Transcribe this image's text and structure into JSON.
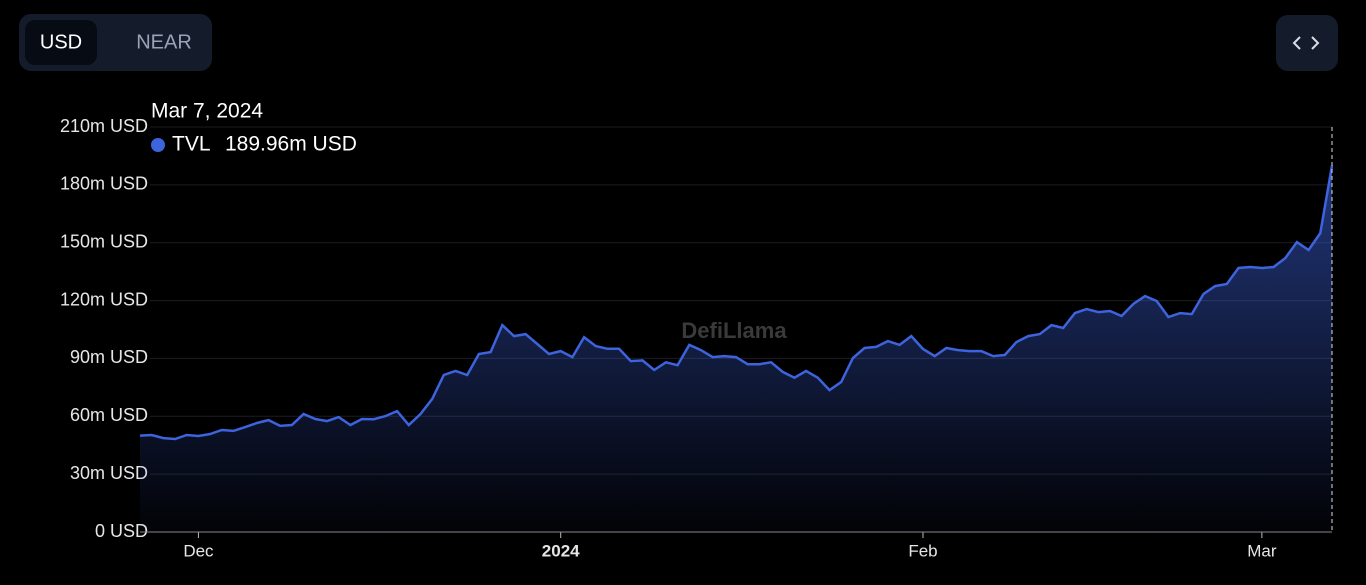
{
  "ui": {
    "toggle": [
      "USD",
      "NEAR"
    ],
    "active": "USD"
  },
  "chart_data": {
    "type": "area",
    "watermark": "DefiLlama",
    "tooltip": {
      "date": "Mar 7, 2024",
      "value_label": "189.96m USD"
    },
    "x": [
      "2023-11-26",
      "2023-11-27",
      "2023-11-28",
      "2023-11-29",
      "2023-11-30",
      "2023-12-01",
      "2023-12-02",
      "2023-12-03",
      "2023-12-04",
      "2023-12-05",
      "2023-12-06",
      "2023-12-07",
      "2023-12-08",
      "2023-12-09",
      "2023-12-10",
      "2023-12-11",
      "2023-12-12",
      "2023-12-13",
      "2023-12-14",
      "2023-12-15",
      "2023-12-16",
      "2023-12-17",
      "2023-12-18",
      "2023-12-19",
      "2023-12-20",
      "2023-12-21",
      "2023-12-22",
      "2023-12-23",
      "2023-12-24",
      "2023-12-25",
      "2023-12-26",
      "2023-12-27",
      "2023-12-28",
      "2023-12-29",
      "2023-12-30",
      "2023-12-31",
      "2024-01-01",
      "2024-01-02",
      "2024-01-03",
      "2024-01-04",
      "2024-01-05",
      "2024-01-06",
      "2024-01-07",
      "2024-01-08",
      "2024-01-09",
      "2024-01-10",
      "2024-01-11",
      "2024-01-12",
      "2024-01-13",
      "2024-01-14",
      "2024-01-15",
      "2024-01-16",
      "2024-01-17",
      "2024-01-18",
      "2024-01-19",
      "2024-01-20",
      "2024-01-21",
      "2024-01-22",
      "2024-01-23",
      "2024-01-24",
      "2024-01-25",
      "2024-01-26",
      "2024-01-27",
      "2024-01-28",
      "2024-01-29",
      "2024-01-30",
      "2024-01-31",
      "2024-02-01",
      "2024-02-02",
      "2024-02-03",
      "2024-02-04",
      "2024-02-05",
      "2024-02-06",
      "2024-02-07",
      "2024-02-08",
      "2024-02-09",
      "2024-02-10",
      "2024-02-11",
      "2024-02-12",
      "2024-02-13",
      "2024-02-14",
      "2024-02-15",
      "2024-02-16",
      "2024-02-17",
      "2024-02-18",
      "2024-02-19",
      "2024-02-20",
      "2024-02-21",
      "2024-02-22",
      "2024-02-23",
      "2024-02-24",
      "2024-02-25",
      "2024-02-26",
      "2024-02-27",
      "2024-02-28",
      "2024-02-29",
      "2024-03-01",
      "2024-03-02",
      "2024-03-03",
      "2024-03-04",
      "2024-03-05",
      "2024-03-06",
      "2024-03-07"
    ],
    "series": [
      {
        "name": "TVL",
        "color": "#3d63dd",
        "values": [
          50,
          50.3,
          48.7,
          48.2,
          50.3,
          49.8,
          50.8,
          52.9,
          52.4,
          54.4,
          56.5,
          58,
          55,
          55.5,
          61.2,
          58.6,
          57.5,
          59.6,
          55.5,
          58.6,
          58.5,
          60.1,
          62.7,
          55.5,
          61.2,
          69,
          81.4,
          83.5,
          81.4,
          92.3,
          93.3,
          107.3,
          101.6,
          102.6,
          97.5,
          92.3,
          93.8,
          90.7,
          101,
          96.4,
          95,
          95,
          88.6,
          89,
          84,
          88,
          86.5,
          97,
          94.3,
          90.7,
          91.2,
          90.7,
          87,
          87,
          88,
          83,
          80,
          83.5,
          80,
          73.6,
          77.8,
          90.2,
          95.4,
          96,
          99,
          97,
          101.6,
          94.9,
          91.2,
          95.4,
          94.3,
          93.8,
          93.8,
          91.2,
          91.8,
          98.5,
          101.6,
          102.6,
          107.3,
          105.8,
          113.5,
          115.6,
          114,
          114.6,
          112,
          118.2,
          122.3,
          119.8,
          111.5,
          113.5,
          113,
          123.4,
          127.5,
          128.6,
          136.9,
          137.4,
          136.9,
          137.4,
          142,
          150.3,
          146.2,
          155,
          189.96
        ]
      }
    ],
    "xlim": [
      "2023-11-26",
      "2024-03-07"
    ],
    "xticks": [
      {
        "value": "2023-12-01",
        "label": "Dec"
      },
      {
        "value": "2024-01-01",
        "label": "2024"
      },
      {
        "value": "2024-02-01",
        "label": "Feb"
      },
      {
        "value": "2024-03-01",
        "label": "Mar"
      }
    ],
    "ylim": [
      0,
      210
    ],
    "yticks": [
      {
        "value": 0,
        "label": "0 USD"
      },
      {
        "value": 30,
        "label": "30m USD"
      },
      {
        "value": 60,
        "label": "60m USD"
      },
      {
        "value": 90,
        "label": "90m USD"
      },
      {
        "value": 120,
        "label": "120m USD"
      },
      {
        "value": 150,
        "label": "150m USD"
      },
      {
        "value": 180,
        "label": "180m USD"
      },
      {
        "value": 210,
        "label": "210m USD"
      }
    ],
    "grid": true
  }
}
